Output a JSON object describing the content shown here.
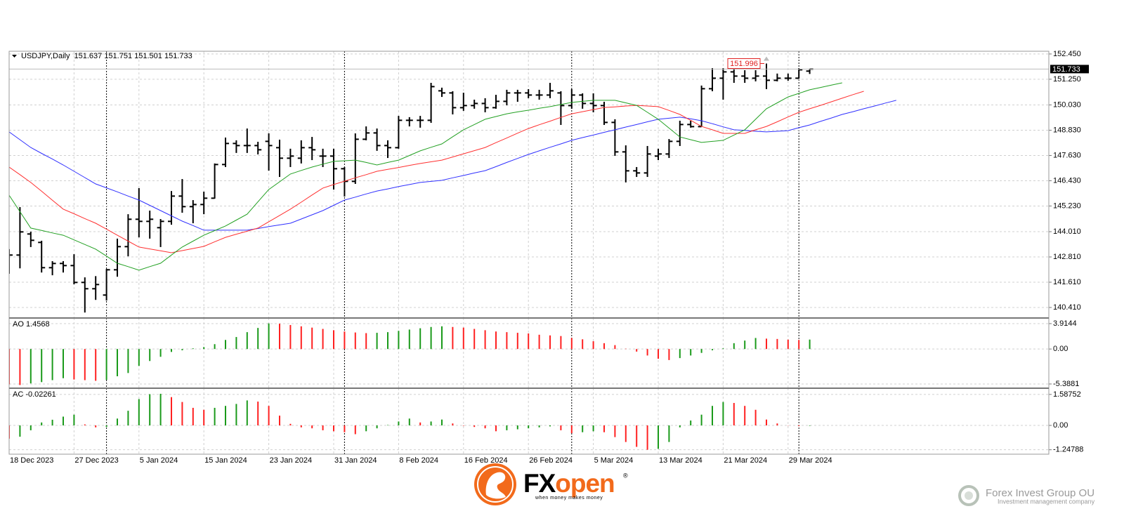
{
  "chart_data": [
    {
      "type": "ohlc",
      "title": "USDJPY,Daily",
      "ohlc_label": "151.637 151.751 151.501 151.733",
      "categories": [
        "18 Dec 2023",
        null,
        null,
        null,
        null,
        null,
        "27 Dec 2023",
        null,
        null,
        null,
        null,
        null,
        "5 Jan 2024",
        null,
        null,
        null,
        null,
        null,
        "15 Jan 2024",
        null,
        null,
        null,
        null,
        null,
        "23 Jan 2024",
        null,
        null,
        null,
        null,
        null,
        "31 Jan 2024",
        null,
        null,
        null,
        null,
        null,
        "8 Feb 2024",
        null,
        null,
        null,
        null,
        null,
        "16 Feb 2024",
        null,
        null,
        null,
        null,
        null,
        "26 Feb 2024",
        null,
        null,
        null,
        null,
        null,
        "5 Mar 2024",
        null,
        null,
        null,
        null,
        null,
        "13 Mar 2024",
        null,
        null,
        null,
        null,
        null,
        "21 Mar 2024",
        null,
        null,
        null,
        null,
        null,
        "29 Mar 2024",
        null,
        null,
        null,
        null,
        null,
        null,
        null,
        null,
        null,
        null
      ],
      "open": [
        142.4,
        142.9,
        143.9,
        143.5,
        142.3,
        142.5,
        142.4,
        141.6,
        141.3,
        141.0,
        142.2,
        143.3,
        144.6,
        144.5,
        144.2,
        144.5,
        145.7,
        145.2,
        145.3,
        145.6,
        147.2,
        148.2,
        148.1,
        148.1,
        148.3,
        148.0,
        147.5,
        147.5,
        148.0,
        147.6,
        147.6,
        147.0,
        146.4,
        148.4,
        148.7,
        148.1,
        148.0,
        149.3,
        149.3,
        149.3,
        150.7,
        150.6,
        149.9,
        150.0,
        150.1,
        149.9,
        150.2,
        150.6,
        150.6,
        150.5,
        150.5,
        150.6,
        150.0,
        150.5,
        150.1,
        150.0,
        149.2,
        147.8,
        146.9,
        146.8,
        147.6,
        147.7,
        148.3,
        149.1,
        149.0,
        150.8,
        151.3,
        151.6,
        151.4,
        151.3,
        151.4,
        151.2,
        151.3,
        151.3,
        151.637,
        null,
        null,
        null,
        null,
        null,
        null,
        null,
        null
      ],
      "high": [
        143.18,
        145.18,
        144.01,
        143.58,
        142.61,
        142.61,
        142.94,
        141.84,
        141.9,
        142.24,
        143.68,
        144.84,
        146.08,
        145.01,
        144.61,
        145.94,
        146.51,
        145.51,
        145.91,
        147.25,
        148.48,
        148.35,
        148.91,
        148.28,
        148.68,
        148.38,
        147.95,
        148.35,
        148.51,
        147.95,
        147.95,
        147.08,
        148.68,
        149.01,
        148.91,
        148.35,
        149.51,
        149.45,
        149.51,
        151.08,
        150.85,
        150.68,
        150.61,
        150.28,
        150.35,
        150.51,
        150.75,
        150.75,
        150.78,
        150.75,
        151.08,
        150.68,
        150.78,
        150.58,
        150.58,
        150.18,
        149.35,
        148.11,
        147.08,
        148.08,
        147.95,
        148.41,
        149.28,
        149.28,
        150.95,
        151.78,
        151.78,
        151.85,
        151.68,
        151.68,
        151.996,
        151.52,
        151.52,
        151.78,
        151.751,
        null,
        null,
        null,
        null,
        null,
        null,
        null,
        null
      ],
      "low": [
        142.01,
        142.27,
        143.28,
        142.07,
        141.94,
        142.07,
        141.51,
        140.17,
        140.77,
        140.74,
        141.87,
        142.84,
        143.74,
        143.68,
        143.28,
        144.34,
        144.91,
        144.41,
        144.84,
        145.58,
        147.08,
        147.75,
        147.75,
        147.68,
        146.91,
        146.61,
        147.08,
        147.25,
        147.41,
        147.08,
        146.01,
        145.68,
        146.28,
        148.35,
        147.85,
        147.51,
        147.95,
        149.01,
        148.95,
        149.18,
        150.41,
        149.58,
        149.75,
        149.85,
        149.68,
        149.85,
        150.01,
        150.18,
        150.35,
        150.28,
        150.35,
        149.08,
        149.85,
        149.85,
        149.68,
        149.08,
        147.61,
        146.35,
        146.61,
        146.61,
        147.41,
        147.51,
        148.08,
        148.95,
        149.01,
        150.68,
        150.28,
        151.08,
        151.08,
        151.15,
        150.78,
        151.15,
        151.18,
        151.28,
        151.501,
        null,
        null,
        null,
        null,
        null,
        null,
        null,
        null
      ],
      "close": [
        142.9,
        144.0,
        143.6,
        142.3,
        142.5,
        142.4,
        141.6,
        141.3,
        141.5,
        142.2,
        143.3,
        144.6,
        144.5,
        144.6,
        144.5,
        145.7,
        145.2,
        145.3,
        145.6,
        147.2,
        148.2,
        148.1,
        148.1,
        147.9,
        148.1,
        147.5,
        147.6,
        148.0,
        147.9,
        147.6,
        147.0,
        146.4,
        148.4,
        148.7,
        148.1,
        148.0,
        149.3,
        149.3,
        149.3,
        150.9,
        150.6,
        149.9,
        150.0,
        150.1,
        149.9,
        150.2,
        150.6,
        150.6,
        150.5,
        150.5,
        150.7,
        150.0,
        150.5,
        150.1,
        150.0,
        149.2,
        147.8,
        146.9,
        146.8,
        147.7,
        147.7,
        148.3,
        149.1,
        149.0,
        150.8,
        151.3,
        151.6,
        151.4,
        151.3,
        151.4,
        151.2,
        151.3,
        151.3,
        151.7,
        151.733,
        null,
        null,
        null,
        null,
        null,
        null,
        null,
        null
      ],
      "color": "#000000",
      "lines": [
        {
          "color": "#3030ff",
          "values": [
            148.75,
            148.38,
            148.01,
            147.73,
            147.46,
            147.18,
            146.88,
            146.58,
            146.28,
            146.09,
            145.9,
            145.7,
            145.51,
            145.26,
            145.01,
            144.76,
            144.51,
            144.3,
            144.08,
            144.08,
            144.08,
            144.08,
            144.08,
            144.16,
            144.25,
            144.33,
            144.41,
            144.61,
            144.81,
            145.01,
            145.26,
            145.51,
            145.65,
            145.8,
            145.94,
            146.04,
            146.15,
            146.25,
            146.35,
            146.4,
            146.45,
            146.57,
            146.68,
            146.8,
            146.91,
            147.1,
            147.3,
            147.49,
            147.68,
            147.85,
            148.02,
            148.18,
            148.35,
            148.48,
            148.6,
            148.73,
            148.85,
            148.98,
            149.1,
            149.23,
            149.35,
            149.4,
            149.45,
            149.37,
            149.28,
            149.14,
            148.99,
            148.85,
            148.82,
            148.78,
            148.75,
            148.78,
            148.81,
            148.95,
            149.08,
            149.25,
            149.41,
            149.58,
            149.71,
            149.85,
            149.98,
            150.12,
            150.25
          ]
        },
        {
          "color": "#ff3030",
          "values": [
            147.08,
            146.72,
            146.35,
            145.93,
            145.5,
            145.08,
            144.86,
            144.63,
            144.41,
            144.13,
            143.84,
            143.56,
            143.28,
            143.19,
            143.1,
            143.01,
            143.11,
            143.21,
            143.31,
            143.53,
            143.74,
            143.89,
            144.03,
            144.18,
            144.48,
            144.78,
            145.08,
            145.41,
            145.75,
            146.08,
            146.25,
            146.41,
            146.57,
            146.72,
            146.88,
            146.97,
            147.06,
            147.16,
            147.25,
            147.33,
            147.41,
            147.56,
            147.71,
            147.86,
            148.01,
            148.24,
            148.46,
            148.69,
            148.91,
            149.09,
            149.26,
            149.44,
            149.61,
            149.71,
            149.81,
            149.91,
            149.94,
            149.98,
            150.01,
            149.98,
            149.95,
            149.77,
            149.58,
            149.3,
            149.01,
            148.85,
            148.68,
            148.68,
            148.68,
            148.85,
            149.01,
            149.23,
            149.46,
            149.68,
            149.85,
            150.01,
            150.18,
            150.35,
            150.52,
            150.68,
            null,
            null,
            null
          ]
        },
        {
          "color": "#22a022",
          "values": [
            145.74,
            144.96,
            144.18,
            144.07,
            143.95,
            143.84,
            143.62,
            143.4,
            143.18,
            142.85,
            142.51,
            142.35,
            142.18,
            142.35,
            142.51,
            142.9,
            143.28,
            143.56,
            143.84,
            144.06,
            144.28,
            144.56,
            144.84,
            145.43,
            146.01,
            146.38,
            146.75,
            146.92,
            147.08,
            147.22,
            147.35,
            147.38,
            147.41,
            147.3,
            147.18,
            147.3,
            147.41,
            147.63,
            147.85,
            148.02,
            148.18,
            148.52,
            148.85,
            149.1,
            149.35,
            149.48,
            149.61,
            149.7,
            149.78,
            149.87,
            149.95,
            150.05,
            150.15,
            150.2,
            150.25,
            150.25,
            150.25,
            150.13,
            150.01,
            149.68,
            149.35,
            148.93,
            148.51,
            148.38,
            148.25,
            148.3,
            148.35,
            148.6,
            148.85,
            149.35,
            149.85,
            150.13,
            150.41,
            150.58,
            150.75,
            150.86,
            150.97,
            151.08,
            null,
            null,
            null,
            null,
            null
          ]
        }
      ],
      "ylim": [
        139.91,
        152.58
      ],
      "yticks": [
        {
          "value": 152.45,
          "label": "152.450"
        },
        {
          "value": 151.25,
          "label": "151.250"
        },
        {
          "value": 150.03,
          "label": "150.030"
        },
        {
          "value": 148.83,
          "label": "148.830"
        },
        {
          "value": 147.63,
          "label": "147.630"
        },
        {
          "value": 146.43,
          "label": "146.430"
        },
        {
          "value": 145.23,
          "label": "145.230"
        },
        {
          "value": 144.01,
          "label": "144.010"
        },
        {
          "value": 142.81,
          "label": "142.810"
        },
        {
          "value": 141.61,
          "label": "141.610"
        },
        {
          "value": 140.41,
          "label": "140.410"
        }
      ],
      "grid": true,
      "last_price_label": "151.733",
      "high_label": "151.996"
    },
    {
      "type": "histogram",
      "title": "AO 1.4568",
      "values": [
        -5.45,
        -5.55,
        -5.3,
        -5.1,
        -4.8,
        -4.5,
        -4.7,
        -4.8,
        -4.9,
        -4.75,
        -4.2,
        -3.7,
        -2.6,
        -1.85,
        -1.2,
        -0.45,
        -0.2,
        0.1,
        0.3,
        0.75,
        1.4,
        1.85,
        2.6,
        3.25,
        3.95,
        3.9,
        3.7,
        3.5,
        3.3,
        3.1,
        2.9,
        2.7,
        2.55,
        2.45,
        2.5,
        2.6,
        2.8,
        3.0,
        3.2,
        3.4,
        3.5,
        3.4,
        3.3,
        3.1,
        2.9,
        2.7,
        2.6,
        2.5,
        2.4,
        2.2,
        2.1,
        2.0,
        1.7,
        1.5,
        1.2,
        0.9,
        0.6,
        0.05,
        -0.4,
        -1.0,
        -1.5,
        -1.7,
        -1.4,
        -1.0,
        -0.6,
        -0.2,
        0.1,
        0.9,
        1.3,
        1.7,
        1.6,
        1.55,
        1.45,
        1.4,
        1.4568,
        null,
        null,
        null,
        null,
        null,
        null,
        null,
        null
      ],
      "up_color": "#1a9a1a",
      "down_color": "#ff2020",
      "ylim": [
        -6.04,
        4.78
      ],
      "yticks": [
        3.9144,
        {
          "value": 0,
          "label": "0.00"
        },
        -5.3881
      ],
      "grid": true
    },
    {
      "type": "histogram",
      "title": "AC -0.02261",
      "values": [
        -0.68,
        -0.58,
        -0.25,
        0.15,
        0.29,
        0.45,
        0.55,
        0.05,
        -0.1,
        -0.08,
        0.35,
        0.75,
        1.35,
        1.6,
        1.62,
        1.45,
        1.2,
        0.9,
        0.8,
        0.9,
        1.0,
        1.1,
        1.28,
        1.22,
        1.0,
        0.5,
        0.08,
        -0.1,
        -0.15,
        -0.25,
        -0.3,
        -0.35,
        -0.45,
        -0.3,
        -0.15,
        0.02,
        0.2,
        0.35,
        0.15,
        0.2,
        0.3,
        0.1,
        -0.02,
        -0.08,
        -0.15,
        -0.3,
        -0.25,
        -0.2,
        -0.15,
        -0.1,
        -0.05,
        -0.25,
        -0.4,
        -0.35,
        -0.3,
        -0.35,
        -0.6,
        -0.85,
        -1.1,
        -1.25,
        -1.2,
        -0.85,
        -0.1,
        0.25,
        0.55,
        1.0,
        1.2,
        1.15,
        1.0,
        0.8,
        0.3,
        0.1,
        -0.01,
        -0.04,
        -0.02261,
        null,
        null,
        null,
        null,
        null,
        null,
        null,
        null
      ],
      "up_color": "#1a9a1a",
      "down_color": "#ff2020",
      "ylim": [
        -1.475,
        1.906
      ],
      "yticks": [
        1.58752,
        {
          "value": 0,
          "label": "0.00"
        },
        -1.24788
      ],
      "grid": true
    }
  ],
  "footer": {
    "brand_fx": "FX",
    "brand_open": "open",
    "brand_mark": "®",
    "tagline": "when money makes money",
    "partner": "Forex Invest Group OU",
    "partner_sub": "Investment management company"
  }
}
